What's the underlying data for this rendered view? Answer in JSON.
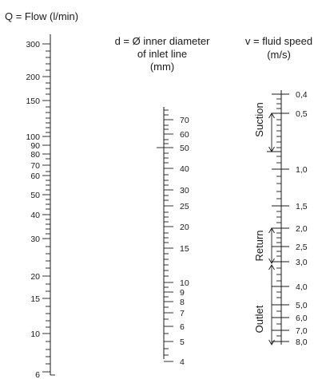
{
  "headers": {
    "q_title": "Q = Flow (l/min)",
    "d_title_line1": "d = Ø inner diameter",
    "d_title_line2": "of inlet line",
    "d_title_line3": "(mm)",
    "v_title_line1": "v = fluid speed",
    "v_title_line2": "(m/s)"
  },
  "flow_scale": {
    "labels": [
      "300",
      "200",
      "150",
      "100",
      "90",
      "80",
      "70",
      "60",
      "50",
      "40",
      "30",
      "20",
      "15",
      "10",
      "6"
    ]
  },
  "diameter_scale": {
    "labels": [
      "70",
      "60",
      "50",
      "40",
      "30",
      "25",
      "20",
      "15",
      "10",
      "9",
      "8",
      "7",
      "6",
      "5",
      "4"
    ]
  },
  "speed_scale": {
    "labels": [
      "0,4",
      "0,5",
      "1,0",
      "1,5",
      "2,0",
      "2,5",
      "3,0",
      "4,0",
      "5,0",
      "6,0",
      "7,0",
      "8,0"
    ]
  },
  "ranges": {
    "suction": "Suction",
    "return": "Return",
    "outlet": "Outlet"
  }
}
